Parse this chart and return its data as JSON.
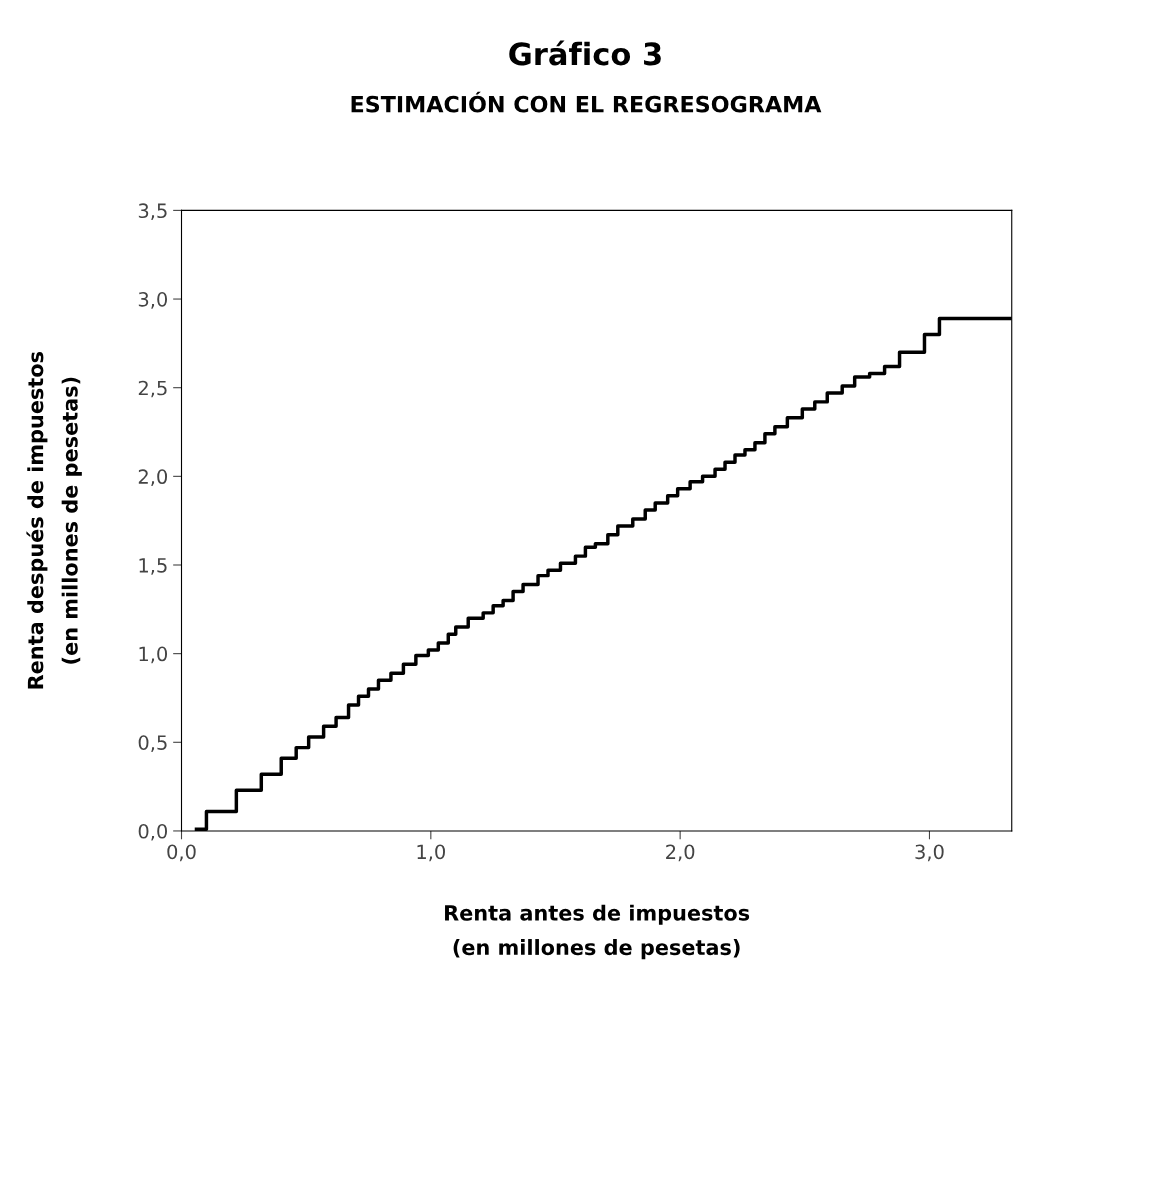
{
  "chart_data": {
    "type": "step",
    "title": "Gráfico 3",
    "subtitle": "ESTIMACIÓN CON EL REGRESOGRAMA",
    "xlabel": "Renta antes de impuestos\n(en millones de pesetas)",
    "ylabel": "Renta después de impuestos\n(en millones de pesetas)",
    "x": [
      0.06,
      0.1,
      0.22,
      0.32,
      0.4,
      0.46,
      0.51,
      0.57,
      0.62,
      0.67,
      0.71,
      0.75,
      0.79,
      0.84,
      0.89,
      0.94,
      0.99,
      1.03,
      1.07,
      1.1,
      1.15,
      1.21,
      1.25,
      1.29,
      1.33,
      1.37,
      1.43,
      1.47,
      1.52,
      1.58,
      1.62,
      1.66,
      1.71,
      1.75,
      1.81,
      1.86,
      1.9,
      1.95,
      1.99,
      2.04,
      2.09,
      2.14,
      2.18,
      2.22,
      2.26,
      2.3,
      2.34,
      2.38,
      2.43,
      2.49,
      2.54,
      2.59,
      2.65,
      2.7,
      2.76,
      2.82,
      2.88,
      2.98,
      3.04,
      3.33
    ],
    "series": [
      {
        "color": "#000000",
        "values": [
          0.01,
          0.11,
          0.23,
          0.32,
          0.41,
          0.47,
          0.53,
          0.59,
          0.64,
          0.71,
          0.76,
          0.8,
          0.85,
          0.89,
          0.94,
          0.99,
          1.02,
          1.06,
          1.11,
          1.15,
          1.2,
          1.23,
          1.27,
          1.3,
          1.35,
          1.39,
          1.44,
          1.47,
          1.51,
          1.55,
          1.6,
          1.62,
          1.67,
          1.72,
          1.76,
          1.81,
          1.85,
          1.89,
          1.93,
          1.97,
          2.0,
          2.04,
          2.08,
          2.12,
          2.15,
          2.19,
          2.24,
          2.28,
          2.33,
          2.38,
          2.42,
          2.47,
          2.51,
          2.56,
          2.58,
          2.62,
          2.7,
          2.8,
          2.89,
          2.89
        ]
      }
    ],
    "xlim": [
      0,
      3.33
    ],
    "xticks": [
      {
        "value": 0,
        "label": "0,0"
      },
      {
        "value": 1,
        "label": "1,0"
      },
      {
        "value": 2,
        "label": "2,0"
      },
      {
        "value": 3,
        "label": "3,0"
      }
    ],
    "ylim": [
      0,
      3.5
    ],
    "yticks": [
      {
        "value": 0,
        "label": "0,0"
      },
      {
        "value": 0.5,
        "label": "0,5"
      },
      {
        "value": 1,
        "label": "1,0"
      },
      {
        "value": 1.5,
        "label": "1,5"
      },
      {
        "value": 2,
        "label": "2,0"
      },
      {
        "value": 2.5,
        "label": "2,5"
      },
      {
        "value": 3,
        "label": "3,0"
      },
      {
        "value": 3.5,
        "label": "3,5"
      }
    ],
    "grid": false,
    "legend": false,
    "line_style": "solid",
    "marker": "none"
  }
}
